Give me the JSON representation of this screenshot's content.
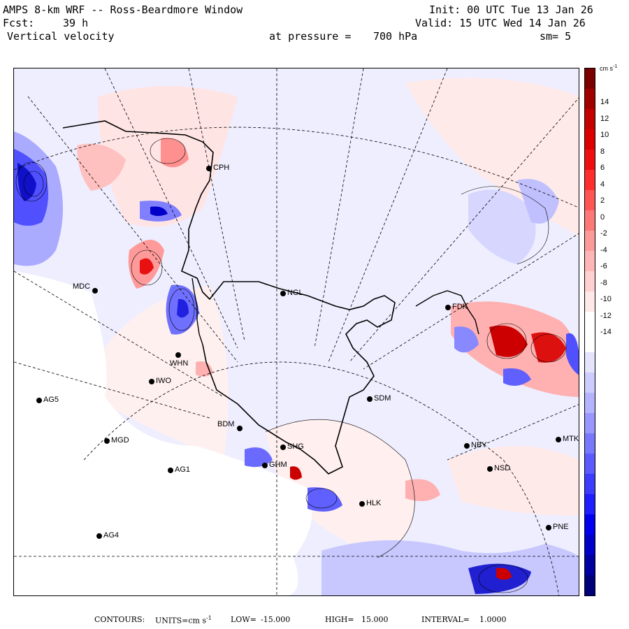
{
  "header": {
    "model": "AMPS 8-km WRF -- Ross-Beardmore Window",
    "init": "Init: 00 UTC Tue 13 Jan 26",
    "forecast_label": "Fcst:",
    "forecast_hours": "39 h",
    "valid": "Valid: 15 UTC Wed 14 Jan 26",
    "field": "Vertical velocity",
    "pressure_label": "at pressure =",
    "pressure_value": "700 hPa",
    "smoothing": "sm= 5"
  },
  "colorbar": {
    "units_prefix": "cm s",
    "units_exp": "-1",
    "ticks": [
      "14",
      "12",
      "10",
      "8",
      "6",
      "4",
      "2",
      "0",
      "-2",
      "-4",
      "-6",
      "-8",
      "-10",
      "-12",
      "-14"
    ],
    "colors": [
      "#7a0000",
      "#a00000",
      "#c40000",
      "#dc0000",
      "#ee1010",
      "#ff2e2e",
      "#ff5555",
      "#ff7878",
      "#ff9a9a",
      "#ffb6b6",
      "#ffd0d0",
      "#ffe8e8",
      "#ffffff",
      "#ffffff",
      "#e4e4ff",
      "#ccccff",
      "#b3b3ff",
      "#9797ff",
      "#7878ff",
      "#5a5aff",
      "#3c3cff",
      "#1e1eff",
      "#0000ee",
      "#0000c8",
      "#0000a0",
      "#000078"
    ]
  },
  "stations": [
    {
      "id": "CPH"
    },
    {
      "id": "NGL"
    },
    {
      "id": "MDC"
    },
    {
      "id": "WHN"
    },
    {
      "id": "IWO"
    },
    {
      "id": "AG5"
    },
    {
      "id": "MGD"
    },
    {
      "id": "AG1"
    },
    {
      "id": "AG4"
    },
    {
      "id": "BDM"
    },
    {
      "id": "SHG"
    },
    {
      "id": "GHM"
    },
    {
      "id": "SDM"
    },
    {
      "id": "HLK"
    },
    {
      "id": "NBY"
    },
    {
      "id": "FDK"
    },
    {
      "id": "MTK"
    },
    {
      "id": "NSD"
    },
    {
      "id": "PNE"
    }
  ],
  "footer": {
    "contours_label": "CONTOURS:",
    "units_label": "UNITS=cm s",
    "units_exp": "-1",
    "low_label": "LOW=",
    "low_value": "-15.000",
    "high_label": "HIGH=",
    "high_value": "15.000",
    "interval_label": "INTERVAL=",
    "interval_value": "1.0000"
  }
}
